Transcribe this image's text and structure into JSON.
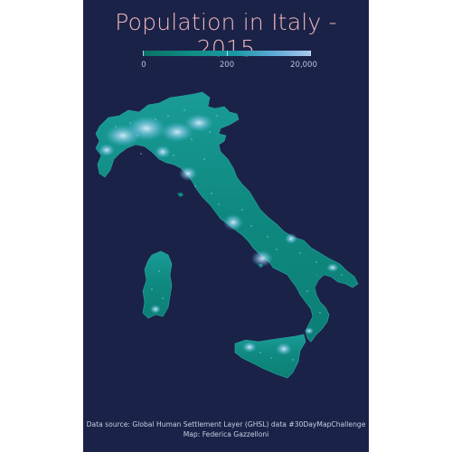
{
  "title": "Population in Italy - 2015",
  "legend": {
    "labels": [
      "0",
      "200",
      "20,000"
    ],
    "colors": [
      "#0c6f66",
      "#108c83",
      "#1a98a3",
      "#5fa9d7",
      "#a9c8ec"
    ]
  },
  "credits": {
    "line1": "Data source: Global Human Settlement Layer (GHSL) data #30DayMapChallenge",
    "line2": "Map: Federica Gazzelloni"
  },
  "theme": {
    "background": "#1b2248",
    "land": "#0e8a7e",
    "land_bright": "#3fb6c4",
    "city_glow": "#bfe6ff",
    "title_color": "#f2b8bc"
  }
}
